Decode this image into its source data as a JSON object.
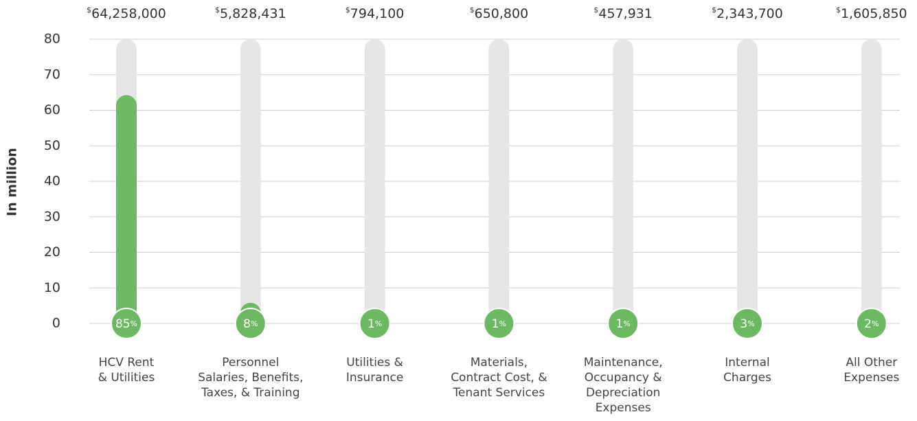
{
  "chart_data": {
    "type": "bar",
    "y_label": "In million",
    "categories": [
      [
        "HCV Rent",
        "& Utilities"
      ],
      [
        "Personnel",
        "Salaries, Benefits,",
        "Taxes, & Training"
      ],
      [
        "Utilities &",
        "Insurance"
      ],
      [
        "Materials,",
        "Contract Cost, &",
        "Tenant Services"
      ],
      [
        "Maintenance,",
        "Occupancy &",
        "Depreciation",
        "Expenses"
      ],
      [
        "Internal",
        "Charges"
      ],
      [
        "All Other",
        "Expenses"
      ]
    ],
    "values": [
      64.258,
      5.828431,
      0.7941,
      0.6508,
      0.457931,
      2.3437,
      1.60585
    ],
    "value_labels": [
      "$64,258,000",
      "$5,828,431",
      "$794,100",
      "$650,800",
      "$457,931",
      "$2,343,700",
      "$1,605,850"
    ],
    "percents": [
      85,
      8,
      1,
      1,
      1,
      3,
      2
    ],
    "percent_labels": [
      "85%",
      "8%",
      "1%",
      "1%",
      "1%",
      "3%",
      "2%"
    ],
    "color": "#6db862",
    "track_color": "#e6e6e6",
    "ylim": [
      0,
      80
    ],
    "yticks": [
      0,
      10,
      20,
      30,
      40,
      50,
      60,
      70,
      80
    ],
    "grid": true
  }
}
